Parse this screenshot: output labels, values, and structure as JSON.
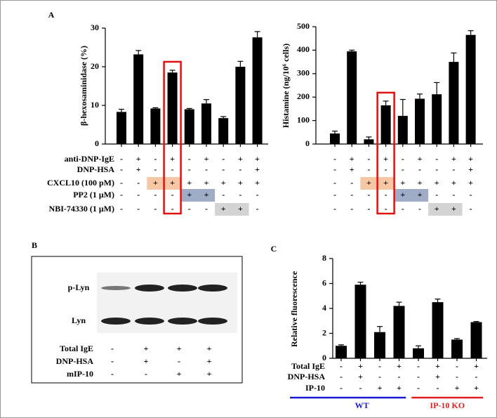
{
  "chart_data": [
    {
      "type": "bar",
      "panel": "A",
      "ylabel": "β-hexosaminidase (%)",
      "color": "#000000",
      "categories": [
        null,
        null,
        null,
        null,
        null,
        null,
        null,
        null,
        null
      ],
      "values": [
        8.3,
        23.2,
        9.2,
        18.5,
        9.0,
        10.5,
        6.7,
        20.0,
        27.6
      ],
      "errors": [
        0.7,
        1.0,
        0.2,
        0.6,
        0.2,
        1.0,
        0.4,
        1.4,
        1.5
      ],
      "ylim": [
        0,
        30
      ],
      "yticks": [
        0,
        10,
        20,
        30
      ],
      "conditions": [
        {
          "label": "anti-DNP-IgE",
          "signs": [
            "-",
            "+",
            "-",
            "+",
            "-",
            "+",
            "-",
            "+",
            "+"
          ]
        },
        {
          "label": "DNP-HSA",
          "signs": [
            "-",
            "+",
            "-",
            "-",
            "-",
            "-",
            "-",
            "-",
            "+"
          ]
        },
        {
          "label": "CXCL10 (100 pM)",
          "signs": [
            "-",
            "-",
            "+",
            "+",
            "+",
            "+",
            "+",
            "+",
            "+"
          ]
        },
        {
          "label": "PP2 (1 μM)",
          "signs": [
            "-",
            "-",
            "-",
            "-",
            "+",
            "+",
            "-",
            "-",
            "-"
          ]
        },
        {
          "label": "NBI-74330 (1 μM)",
          "signs": [
            "-",
            "-",
            "-",
            "-",
            "-",
            "-",
            "+",
            "+",
            "-"
          ]
        }
      ]
    },
    {
      "type": "bar",
      "ylabel": "Histamine (ng/10⁶ cells)",
      "color": "#000000",
      "categories": [
        null,
        null,
        null,
        null,
        null,
        null,
        null,
        null,
        null
      ],
      "values": [
        45,
        395,
        20,
        165,
        120,
        193,
        212,
        350,
        465
      ],
      "errors": [
        10,
        5,
        10,
        18,
        70,
        20,
        50,
        38,
        18
      ],
      "ylim": [
        0,
        500
      ],
      "yticks": [
        0,
        100,
        200,
        300,
        400,
        500
      ],
      "conditions": [
        {
          "signs": [
            "-",
            "+",
            "-",
            "+",
            "-",
            "+",
            "-",
            "+",
            "+"
          ]
        },
        {
          "signs": [
            "-",
            "+",
            "-",
            "-",
            "-",
            "-",
            "-",
            "-",
            "+"
          ]
        },
        {
          "signs": [
            "-",
            "-",
            "+",
            "+",
            "+",
            "+",
            "+",
            "+",
            "+"
          ]
        },
        {
          "signs": [
            "-",
            "-",
            "-",
            "-",
            "+",
            "+",
            "-",
            "-",
            "-"
          ]
        },
        {
          "signs": [
            "-",
            "-",
            "-",
            "-",
            "-",
            "-",
            "+",
            "+",
            "-"
          ]
        }
      ]
    },
    {
      "type": "bar",
      "panel": "C",
      "ylabel": "Relative fluorescence",
      "color": "#000000",
      "categories": [
        null,
        null,
        null,
        null,
        null,
        null,
        null,
        null
      ],
      "values": [
        1.0,
        5.9,
        2.1,
        4.2,
        0.8,
        4.5,
        1.5,
        2.9
      ],
      "errors": [
        0.08,
        0.2,
        0.45,
        0.3,
        0.2,
        0.25,
        0.08,
        0.05
      ],
      "ylim": [
        0,
        8
      ],
      "yticks": [
        0,
        2,
        4,
        6,
        8
      ],
      "conditions": [
        {
          "label": "Total IgE",
          "signs": [
            "-",
            "+",
            "-",
            "+",
            "-",
            "+",
            "-",
            "+"
          ]
        },
        {
          "label": "DNP-HSA",
          "signs": [
            "-",
            "+",
            "-",
            "-",
            "-",
            "+",
            "-",
            "-"
          ]
        },
        {
          "label": "IP-10",
          "signs": [
            "-",
            "-",
            "+",
            "+",
            "-",
            "-",
            "+",
            "+"
          ]
        }
      ],
      "groups": [
        {
          "name": "WT",
          "color": "#1a1ad0"
        },
        {
          "name": "IP-10 KO",
          "color": "#e02020"
        }
      ]
    }
  ],
  "blot": {
    "panel": "B",
    "bands": [
      "p-Lyn",
      "Lyn"
    ],
    "conditions": [
      {
        "label": "Total IgE",
        "signs": [
          "-",
          "+",
          "+",
          "+"
        ]
      },
      {
        "label": "DNP-HSA",
        "signs": [
          "-",
          "+",
          "-",
          "+"
        ]
      },
      {
        "label": "mIP-10",
        "signs": [
          "-",
          "-",
          "+",
          "+"
        ]
      }
    ]
  }
}
